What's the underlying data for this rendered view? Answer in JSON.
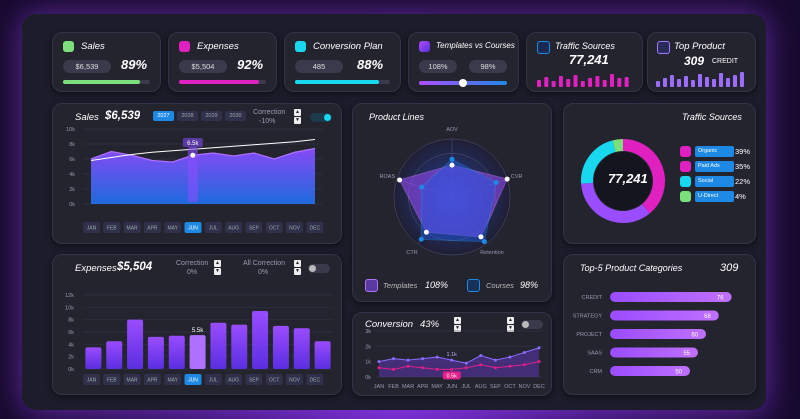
{
  "kpi": {
    "sales": {
      "title": "Sales",
      "pill": "$6,539",
      "pct": "89%",
      "color": "#7be07b",
      "progress": 0.89
    },
    "expenses": {
      "title": "Expenses",
      "pill": "$5,504",
      "pct": "92%",
      "color": "#e020c0",
      "progress": 0.92
    },
    "conversion": {
      "title": "Conversion Plan",
      "pill": "485",
      "pct": "88%",
      "color": "#18d8f0",
      "progress": 0.88
    },
    "templates": {
      "title": "Templates vs Courses",
      "left": "108%",
      "right": "98%",
      "slider": 0.5
    },
    "traffic": {
      "title": "Traffic Sources",
      "value": "77,241"
    },
    "top": {
      "title": "Top Product",
      "value": "309",
      "label": "CREDIT"
    }
  },
  "sales_panel": {
    "title": "Sales",
    "value": "$6,539",
    "years": [
      "2027",
      "2028",
      "2029",
      "2030"
    ],
    "correction_label": "Correction",
    "correction_value": "-10%",
    "tooltip": "6.5k",
    "yticks": [
      "10k",
      "8k",
      "6k",
      "4k",
      "2k",
      "0k"
    ],
    "months": [
      "JAN",
      "FEB",
      "MAR",
      "APR",
      "MAY",
      "JUN",
      "JUL",
      "AUG",
      "SEP",
      "OCT",
      "NOV",
      "DEC"
    ]
  },
  "expenses_panel": {
    "title": "Expenses",
    "value": "$5,504",
    "correction_label": "Correction",
    "correction_value": "0%",
    "all_correction_label": "All Correction",
    "all_correction_value": "0%",
    "tooltip": "5.5k",
    "yticks": [
      "12k",
      "10k",
      "8k",
      "6k",
      "4k",
      "2k",
      "0k"
    ],
    "months": [
      "JAN",
      "FEB",
      "MAR",
      "APR",
      "MAY",
      "JUN",
      "JUL",
      "AUG",
      "SEP",
      "OCT",
      "NOV",
      "DEC"
    ]
  },
  "product_lines": {
    "title": "Product Lines",
    "axes": [
      "AOV",
      "CVR",
      "Retention",
      "CTR",
      "ROAS"
    ],
    "legend_templates": "Templates",
    "legend_templates_value": "108%",
    "legend_courses": "Courses",
    "legend_courses_value": "98%"
  },
  "conversion_panel": {
    "title": "Conversion",
    "value": "43%",
    "yticks": [
      "3k",
      "2k",
      "1k",
      "0k"
    ],
    "high_label": "1.1k",
    "low_label": "0.5k",
    "months": [
      "JAN",
      "FEB",
      "MAR",
      "APR",
      "MAY",
      "JUN",
      "JUL",
      "AUG",
      "SEP",
      "OCT",
      "NOV",
      "DEC"
    ]
  },
  "traffic_panel": {
    "title": "Traffic Sources",
    "center": "77,241",
    "items": [
      {
        "label": "Organic",
        "value": "39%",
        "color": "#e020c0"
      },
      {
        "label": "Paid Ads",
        "value": "35%",
        "color": "#e020c0"
      },
      {
        "label": "Social",
        "value": "22%",
        "color": "#18d8f0"
      },
      {
        "label": "U-Direct",
        "value": "4%",
        "color": "#7be07b"
      }
    ]
  },
  "top5": {
    "title": "Top-5 Product Categories",
    "value": "309",
    "items": [
      {
        "label": "CREDIT",
        "value": "76"
      },
      {
        "label": "STRATEGY",
        "value": "68"
      },
      {
        "label": "PROJECT",
        "value": "60"
      },
      {
        "label": "SAAS",
        "value": "55"
      },
      {
        "label": "CRM",
        "value": "50"
      }
    ]
  },
  "chart_data": [
    {
      "type": "area",
      "title": "Sales",
      "categories": [
        "JAN",
        "FEB",
        "MAR",
        "APR",
        "MAY",
        "JUN",
        "JUL",
        "AUG",
        "SEP",
        "OCT",
        "NOV",
        "DEC"
      ],
      "series": [
        {
          "values": [
            6.0,
            7.0,
            6.5,
            5.8,
            5.6,
            6.5,
            6.8,
            6.4,
            6.8,
            6.0,
            6.9,
            7.4
          ]
        },
        {
          "values": [
            5.8,
            6.2,
            6.6,
            6.9,
            7.1,
            7.3,
            7.5,
            7.7,
            7.9,
            8.1,
            8.3,
            8.6
          ]
        }
      ],
      "ylim": [
        0,
        10
      ]
    },
    {
      "type": "bar",
      "title": "Expenses",
      "categories": [
        "JAN",
        "FEB",
        "MAR",
        "APR",
        "MAY",
        "JUN",
        "JUL",
        "AUG",
        "SEP",
        "OCT",
        "NOV",
        "DEC"
      ],
      "values": [
        3.5,
        4.5,
        8.0,
        5.2,
        5.4,
        5.5,
        7.5,
        7.2,
        9.4,
        7.0,
        6.6,
        4.5
      ],
      "ylim": [
        0,
        12
      ]
    },
    {
      "type": "line",
      "title": "Conversion",
      "categories": [
        "JAN",
        "FEB",
        "MAR",
        "APR",
        "MAY",
        "JUN",
        "JUL",
        "AUG",
        "SEP",
        "OCT",
        "NOV",
        "DEC"
      ],
      "series": [
        {
          "values": [
            1.0,
            1.2,
            1.1,
            1.2,
            1.3,
            1.1,
            0.9,
            1.4,
            1.1,
            1.3,
            1.6,
            1.9
          ]
        },
        {
          "values": [
            0.6,
            0.5,
            0.7,
            0.6,
            0.5,
            0.5,
            0.6,
            0.8,
            0.6,
            0.7,
            0.8,
            1.0
          ]
        }
      ],
      "ylim": [
        0,
        3
      ]
    },
    {
      "type": "pie",
      "title": "Traffic Sources",
      "categories": [
        "Organic",
        "Paid Ads",
        "Social",
        "U-Direct"
      ],
      "values": [
        39,
        35,
        22,
        4
      ]
    },
    {
      "type": "bar",
      "title": "Top-5 Product Categories",
      "categories": [
        "CREDIT",
        "STRATEGY",
        "PROJECT",
        "SAAS",
        "CRM"
      ],
      "values": [
        76,
        68,
        60,
        55,
        50
      ],
      "xlim": [
        0,
        80
      ]
    }
  ]
}
